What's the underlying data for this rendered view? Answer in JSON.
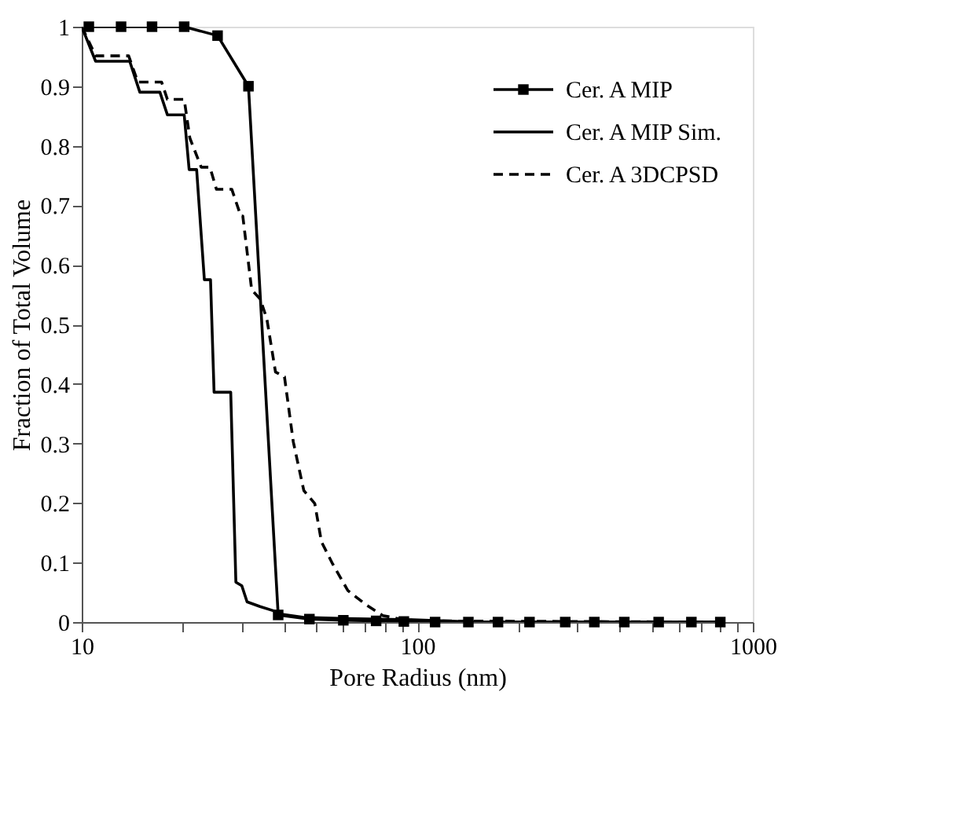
{
  "chart_data": {
    "type": "line",
    "xlabel": "Pore Radius (nm)",
    "ylabel": "Fraction of Total Volume",
    "log": "x",
    "xlim": [
      10,
      1000
    ],
    "xticks": [
      10,
      {
        "value": 20,
        "label": null
      },
      {
        "value": 30,
        "label": null
      },
      {
        "value": 40,
        "label": null
      },
      {
        "value": 50,
        "label": null
      },
      {
        "value": 60,
        "label": null
      },
      {
        "value": 70,
        "label": null
      },
      {
        "value": 80,
        "label": null
      },
      {
        "value": 90,
        "label": null
      },
      100,
      {
        "value": 200,
        "label": null
      },
      {
        "value": 300,
        "label": null
      },
      {
        "value": 400,
        "label": null
      },
      {
        "value": 500,
        "label": null
      },
      {
        "value": 600,
        "label": null
      },
      {
        "value": 700,
        "label": null
      },
      {
        "value": 800,
        "label": null
      },
      {
        "value": 900,
        "label": null
      },
      1000
    ],
    "ylim": [
      0,
      1
    ],
    "yticks": [
      0,
      0.1,
      0.2,
      0.3,
      0.4,
      0.5,
      0.6,
      0.7,
      0.8,
      0.9,
      1
    ],
    "grid": false,
    "legend": "top right",
    "series": [
      {
        "name": "Cer. A MIP",
        "color": "#000000",
        "marker": "square",
        "line_style": "solid",
        "x": [
          10.5,
          13.1,
          16.2,
          20.2,
          25.4,
          31.4,
          38.5,
          47.7,
          60.2,
          75.4,
          91.2,
          113,
          142,
          174,
          216,
          276,
          337,
          414,
          524,
          656,
          800
        ],
        "values": [
          1,
          1,
          1,
          1,
          0.985,
          0.9,
          0.012,
          0.005,
          0.003,
          0.002,
          0.001,
          0,
          0,
          0,
          0,
          0,
          0,
          0,
          0,
          0,
          0
        ]
      },
      {
        "name": "Cer. A MIP Sim.",
        "color": "#000000",
        "marker": "none",
        "line_style": "solid",
        "x": [
          10,
          11.0,
          13.9,
          14.9,
          17.1,
          18.0,
          20.2,
          20.9,
          22.0,
          23.2,
          24.2,
          24.8,
          27.8,
          28.8,
          30.0,
          31.1,
          34.0,
          37.3,
          39.4,
          45.9,
          62,
          97,
          152,
          800
        ],
        "values": [
          1,
          0.942,
          0.942,
          0.89,
          0.89,
          0.852,
          0.852,
          0.76,
          0.76,
          0.575,
          0.575,
          0.386,
          0.386,
          0.067,
          0.061,
          0.034,
          0.026,
          0.019,
          0.013,
          0.008,
          0.006,
          0.004,
          0,
          0
        ]
      },
      {
        "name": "Cer. A 3DCPSD",
        "color": "#000000",
        "marker": "none",
        "line_style": "dashed",
        "x": [
          10,
          11.0,
          13.8,
          14.7,
          17.3,
          18.0,
          20.2,
          21.0,
          22.7,
          24.1,
          25.2,
          28.0,
          29.8,
          30.2,
          32.1,
          34.0,
          35.6,
          37.8,
          40.2,
          42.7,
          45.9,
          49.5,
          51.8,
          55.9,
          62.1,
          70.0,
          78.9,
          89.0,
          100.4,
          800
        ],
        "values": [
          1,
          0.951,
          0.951,
          0.907,
          0.907,
          0.878,
          0.878,
          0.813,
          0.764,
          0.764,
          0.727,
          0.727,
          0.682,
          0.682,
          0.558,
          0.543,
          0.51,
          0.42,
          0.412,
          0.303,
          0.221,
          0.199,
          0.135,
          0.098,
          0.053,
          0.03,
          0.011,
          0.005,
          0.002,
          0
        ]
      }
    ]
  }
}
